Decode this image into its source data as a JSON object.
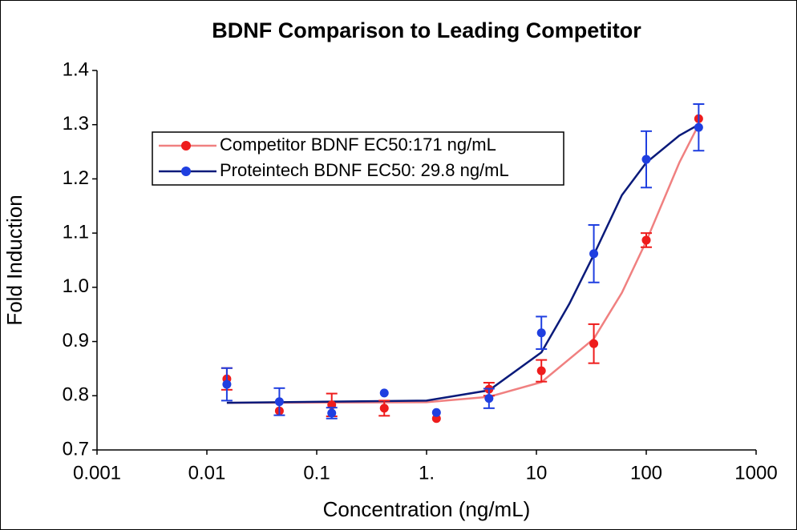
{
  "chart_data": {
    "type": "scatter",
    "title": "BDNF Comparison to Leading Competitor",
    "x_label": "Concentration (ng/mL)",
    "y_label": "Fold Induction",
    "log_x": true,
    "xlim": [
      0.001,
      1000
    ],
    "xticks": [
      0.001,
      0.01,
      0.1,
      {
        "value": 1,
        "label": "1."
      },
      10,
      100,
      1000
    ],
    "ylim": [
      0.7,
      1.4
    ],
    "yticks": [
      0.7,
      0.8,
      0.9,
      {
        "value": 1.0,
        "label": "1.0"
      },
      1.1,
      1.2,
      1.3,
      1.4
    ],
    "legend": "upper left",
    "x": [
      0.0152,
      0.0457,
      0.137,
      0.412,
      1.23,
      3.7,
      11.1,
      33.3,
      100,
      300
    ],
    "series": [
      {
        "name": "Competitor BDNF EC50:171 ng/mL",
        "color": "#ee1c1c",
        "line_color": "#f08080",
        "values": [
          0.831,
          0.772,
          0.783,
          0.777,
          0.758,
          0.812,
          0.846,
          0.896,
          1.087,
          1.311
        ],
        "errors": [
          0.02,
          null,
          0.021,
          0.014,
          null,
          0.012,
          0.02,
          0.036,
          0.013,
          null
        ],
        "curve_x": [
          0.0152,
          1,
          3.7,
          11.1,
          33.3,
          60,
          100,
          200,
          300
        ],
        "curve_values": [
          0.787,
          0.788,
          0.798,
          0.825,
          0.905,
          0.99,
          1.085,
          1.23,
          1.3
        ]
      },
      {
        "name": "Proteintech BDNF EC50: 29.8 ng/mL",
        "color": "#1f3fe0",
        "line_color": "#0a1a7a",
        "values": [
          0.821,
          0.789,
          0.768,
          0.805,
          0.769,
          0.795,
          0.916,
          1.062,
          1.236,
          1.295
        ],
        "errors": [
          0.03,
          0.025,
          0.01,
          null,
          null,
          0.018,
          0.03,
          0.053,
          0.052,
          0.043
        ],
        "curve_x": [
          0.0152,
          1,
          3.7,
          11.1,
          20,
          33.3,
          60,
          100,
          200,
          300
        ],
        "curve_values": [
          0.787,
          0.791,
          0.81,
          0.88,
          0.97,
          1.06,
          1.17,
          1.23,
          1.28,
          1.3
        ]
      }
    ]
  }
}
